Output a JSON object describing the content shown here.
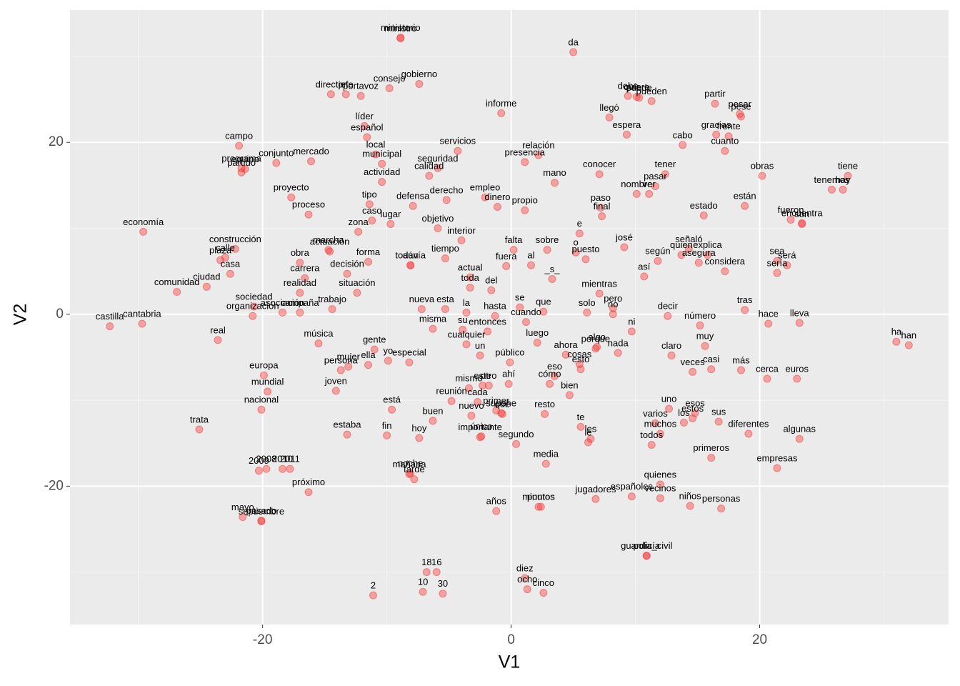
{
  "chart_data": {
    "type": "scatter",
    "x_label": "V1",
    "y_label": "V2",
    "xlim": [
      -35.5,
      35.2
    ],
    "ylim": [
      -36.1,
      35.4
    ],
    "xticks": [
      -20,
      0,
      20
    ],
    "yticks": [
      -20,
      0,
      20
    ],
    "xminor": [
      -30,
      -10,
      10,
      30
    ],
    "yminor": [
      -30,
      -10,
      10,
      30
    ],
    "grid": true,
    "color": "#f8312f",
    "points": [
      {
        "label": "ministerio",
        "x": -8.9,
        "y": 32.2
      },
      {
        "label": "ministro",
        "x": -8.9,
        "y": 32.1
      },
      {
        "label": "da",
        "x": 5.0,
        "y": 30.5
      },
      {
        "label": "gobierno",
        "x": -7.4,
        "y": 26.8
      },
      {
        "label": "consejo",
        "x": -9.8,
        "y": 26.3
      },
      {
        "label": "jefe",
        "x": -13.3,
        "y": 25.6
      },
      {
        "label": "director",
        "x": -14.5,
        "y": 25.6
      },
      {
        "label": "portavoz",
        "x": -12.1,
        "y": 25.4
      },
      {
        "label": "debe",
        "x": 9.4,
        "y": 25.4
      },
      {
        "label": "puede",
        "x": 10.3,
        "y": 25.2
      },
      {
        "label": "pueden",
        "x": 11.3,
        "y": 24.8
      },
      {
        "label": "partir",
        "x": 16.4,
        "y": 24.5
      },
      {
        "label": "pesar",
        "x": 18.4,
        "y": 23.3
      },
      {
        "label": "pese",
        "x": 18.5,
        "y": 23.0
      },
      {
        "label": "informe",
        "x": -0.8,
        "y": 23.4
      },
      {
        "label": "quiere",
        "x": 10.1,
        "y": 25.3
      },
      {
        "label": "llegó",
        "x": 7.9,
        "y": 22.9
      },
      {
        "label": "líder",
        "x": -11.8,
        "y": 21.9
      },
      {
        "label": "español",
        "x": -11.6,
        "y": 20.6
      },
      {
        "label": "campo",
        "x": -21.9,
        "y": 19.6
      },
      {
        "label": "servicios",
        "x": -4.3,
        "y": 19.0
      },
      {
        "label": "espera",
        "x": 9.3,
        "y": 20.9
      },
      {
        "label": "cabo",
        "x": 13.8,
        "y": 19.7
      },
      {
        "label": "gracias",
        "x": 16.5,
        "y": 20.9
      },
      {
        "label": "frente",
        "x": 17.5,
        "y": 20.7
      },
      {
        "label": "relación",
        "x": 2.2,
        "y": 18.5
      },
      {
        "label": "equipo",
        "x": -21.4,
        "y": 16.9
      },
      {
        "label": "mercado",
        "x": -16.1,
        "y": 17.8
      },
      {
        "label": "local",
        "x": -10.9,
        "y": 18.6
      },
      {
        "label": "seguridad",
        "x": -5.9,
        "y": 17.0
      },
      {
        "label": "municipal",
        "x": -10.4,
        "y": 17.5
      },
      {
        "label": "conjunto",
        "x": -18.9,
        "y": 17.6
      },
      {
        "label": "partido",
        "x": -21.7,
        "y": 16.5
      },
      {
        "label": "mano",
        "x": 3.5,
        "y": 15.3
      },
      {
        "label": "conocer",
        "x": 7.1,
        "y": 16.3
      },
      {
        "label": "tener",
        "x": 12.4,
        "y": 16.3
      },
      {
        "label": "obras",
        "x": 20.2,
        "y": 16.1
      },
      {
        "label": "tiene",
        "x": 27.1,
        "y": 16.1
      },
      {
        "label": "tenemos",
        "x": 25.8,
        "y": 14.5
      },
      {
        "label": "hay",
        "x": 26.7,
        "y": 14.5
      },
      {
        "label": "presencia",
        "x": 1.1,
        "y": 17.7
      },
      {
        "label": "calidad",
        "x": -6.6,
        "y": 16.1
      },
      {
        "label": "programa",
        "x": -21.7,
        "y": 17.0
      },
      {
        "label": "cuanto",
        "x": 17.2,
        "y": 19.0
      },
      {
        "label": "paso",
        "x": 7.2,
        "y": 12.4
      },
      {
        "label": "pasar",
        "x": 11.6,
        "y": 14.9
      },
      {
        "label": "nombre",
        "x": 10.1,
        "y": 14.0
      },
      {
        "label": "ver",
        "x": 11.1,
        "y": 14.0
      },
      {
        "label": "están",
        "x": 18.8,
        "y": 12.6
      },
      {
        "label": "fueron",
        "x": 22.5,
        "y": 11.0
      },
      {
        "label": "tipo",
        "x": -11.4,
        "y": 12.8
      },
      {
        "label": "actividad",
        "x": -10.4,
        "y": 15.4
      },
      {
        "label": "derecho",
        "x": -5.2,
        "y": 13.3
      },
      {
        "label": "proyecto",
        "x": -17.7,
        "y": 13.6
      },
      {
        "label": "proceso",
        "x": -16.3,
        "y": 11.6
      },
      {
        "label": "caso",
        "x": -11.2,
        "y": 10.9
      },
      {
        "label": "defensa",
        "x": -7.9,
        "y": 12.6
      },
      {
        "label": "empleo",
        "x": -2.1,
        "y": 13.6
      },
      {
        "label": "dinero",
        "x": -1.1,
        "y": 12.5
      },
      {
        "label": "estado",
        "x": 15.5,
        "y": 11.5
      },
      {
        "label": "encuentra",
        "x": 23.4,
        "y": 10.6
      },
      {
        "label": "final",
        "x": 7.3,
        "y": 11.4
      },
      {
        "label": "propio",
        "x": 1.1,
        "y": 12.1
      },
      {
        "label": "zona",
        "x": -12.3,
        "y": 9.6
      },
      {
        "label": "lugar",
        "x": -9.7,
        "y": 10.5
      },
      {
        "label": "objetivo",
        "x": -5.9,
        "y": 10.0
      },
      {
        "label": "interior",
        "x": -4.0,
        "y": 8.6
      },
      {
        "label": "falta",
        "x": 0.2,
        "y": 7.5
      },
      {
        "label": "sobre",
        "x": 2.9,
        "y": 7.5
      },
      {
        "label": "e",
        "x": 5.5,
        "y": 9.4
      },
      {
        "label": "josé",
        "x": 9.1,
        "y": 7.8
      },
      {
        "label": "señaló",
        "x": 14.3,
        "y": 7.6
      },
      {
        "label": "son",
        "x": 23.4,
        "y": 10.5
      },
      {
        "label": "sea",
        "x": 21.4,
        "y": 6.2
      },
      {
        "label": "será",
        "x": 22.2,
        "y": 5.7
      },
      {
        "label": "sería",
        "x": 21.4,
        "y": 4.8
      },
      {
        "label": "considera",
        "x": 17.2,
        "y": 5.0
      },
      {
        "label": "explica",
        "x": 15.8,
        "y": 6.9
      },
      {
        "label": "economía",
        "x": -29.6,
        "y": 9.6
      },
      {
        "label": "calle",
        "x": -23.0,
        "y": 6.6
      },
      {
        "label": "construcción",
        "x": -22.2,
        "y": 7.6
      },
      {
        "label": "plaza",
        "x": -23.4,
        "y": 6.3
      },
      {
        "label": "marcha",
        "x": -14.7,
        "y": 7.5
      },
      {
        "label": "actuación",
        "x": -14.6,
        "y": 7.3
      },
      {
        "label": "forma",
        "x": -11.5,
        "y": 6.1
      },
      {
        "label": "aún",
        "x": -8.1,
        "y": 5.7
      },
      {
        "label": "tiempo",
        "x": -5.3,
        "y": 6.5
      },
      {
        "label": "todavía",
        "x": -8.1,
        "y": 5.7
      },
      {
        "label": "fuera",
        "x": -0.4,
        "y": 5.6
      },
      {
        "label": "o",
        "x": 5.2,
        "y": 7.2
      },
      {
        "label": "puesto",
        "x": 6.0,
        "y": 6.4
      },
      {
        "label": "quien",
        "x": 13.7,
        "y": 6.9
      },
      {
        "label": "según",
        "x": 11.8,
        "y": 6.2
      },
      {
        "label": "asegura",
        "x": 15.1,
        "y": 6.0
      },
      {
        "label": "actual",
        "x": -3.3,
        "y": 4.3
      },
      {
        "label": "al",
        "x": 1.6,
        "y": 5.7
      },
      {
        "label": "_s_",
        "x": 3.3,
        "y": 4.1
      },
      {
        "label": "así",
        "x": 10.7,
        "y": 4.4
      },
      {
        "label": "obra",
        "x": -17.0,
        "y": 6.0
      },
      {
        "label": "carrera",
        "x": -16.6,
        "y": 4.2
      },
      {
        "label": "decisión",
        "x": -13.2,
        "y": 4.7
      },
      {
        "label": "ciudad",
        "x": -24.5,
        "y": 3.2
      },
      {
        "label": "casa",
        "x": -22.6,
        "y": 4.7
      },
      {
        "label": "realidad",
        "x": -17.0,
        "y": 2.5
      },
      {
        "label": "situación",
        "x": -12.4,
        "y": 2.5
      },
      {
        "label": "toda",
        "x": -3.3,
        "y": 3.1
      },
      {
        "label": "del",
        "x": -1.6,
        "y": 2.8
      },
      {
        "label": "se",
        "x": 0.7,
        "y": 0.8
      },
      {
        "label": "que",
        "x": 2.6,
        "y": 0.3
      },
      {
        "label": "mientras",
        "x": 7.1,
        "y": 2.4
      },
      {
        "label": "pero",
        "x": 8.2,
        "y": 0.7
      },
      {
        "label": "comunidad",
        "x": -26.9,
        "y": 2.6
      },
      {
        "label": "sociedad",
        "x": -20.7,
        "y": 0.9
      },
      {
        "label": "organización",
        "x": -20.8,
        "y": -0.2
      },
      {
        "label": "trabajo",
        "x": -14.4,
        "y": 0.6
      },
      {
        "label": "nueva",
        "x": -7.2,
        "y": 0.6
      },
      {
        "label": "esta",
        "x": -5.3,
        "y": 0.6
      },
      {
        "label": "la",
        "x": -3.6,
        "y": 0.2
      },
      {
        "label": "hasta",
        "x": -1.3,
        "y": -0.2
      },
      {
        "label": "cuando",
        "x": 1.2,
        "y": -0.9
      },
      {
        "label": "solo",
        "x": 6.1,
        "y": 0.2
      },
      {
        "label": "no",
        "x": 8.2,
        "y": 0.0
      },
      {
        "label": "ni",
        "x": 9.7,
        "y": -2.0
      },
      {
        "label": "decir",
        "x": 12.6,
        "y": -0.2
      },
      {
        "label": "tras",
        "x": 18.8,
        "y": 0.5
      },
      {
        "label": "lleva",
        "x": 23.2,
        "y": -1.0
      },
      {
        "label": "número",
        "x": 15.2,
        "y": -1.3
      },
      {
        "label": "hace",
        "x": 20.7,
        "y": -1.1
      },
      {
        "label": "castilla",
        "x": -32.3,
        "y": -1.4
      },
      {
        "label": "cantabria",
        "x": -29.7,
        "y": -1.1
      },
      {
        "label": "campaña",
        "x": -17.0,
        "y": 0.2
      },
      {
        "label": "misma",
        "x": -6.3,
        "y": -1.7
      },
      {
        "label": "su",
        "x": -3.9,
        "y": -1.8
      },
      {
        "label": "entonces",
        "x": -1.9,
        "y": -2.0
      },
      {
        "label": "luego",
        "x": 2.1,
        "y": -3.3
      },
      {
        "label": "porque",
        "x": 6.8,
        "y": -4.0
      },
      {
        "label": "algo",
        "x": 6.9,
        "y": -3.8
      },
      {
        "label": "claro",
        "x": 12.9,
        "y": -4.8
      },
      {
        "label": "muy",
        "x": 15.6,
        "y": -3.7
      },
      {
        "label": "veces",
        "x": 14.6,
        "y": -6.7
      },
      {
        "label": "más",
        "x": 18.5,
        "y": -6.5
      },
      {
        "label": "asociación",
        "x": -18.4,
        "y": 0.2
      },
      {
        "label": "gente",
        "x": -11.0,
        "y": -4.1
      },
      {
        "label": "cualquier",
        "x": -3.6,
        "y": -3.5
      },
      {
        "label": "un",
        "x": -2.5,
        "y": -4.8
      },
      {
        "label": "público",
        "x": -0.1,
        "y": -5.6
      },
      {
        "label": "ahora",
        "x": 4.4,
        "y": -4.7
      },
      {
        "label": "esto",
        "x": 5.6,
        "y": -6.4
      },
      {
        "label": "nada",
        "x": 8.6,
        "y": -4.5
      },
      {
        "label": "casi",
        "x": 16.1,
        "y": -6.4
      },
      {
        "label": "cerca",
        "x": 20.6,
        "y": -7.5
      },
      {
        "label": "euros",
        "x": 23.0,
        "y": -7.5
      },
      {
        "label": "ha",
        "x": 31.0,
        "y": -3.2
      },
      {
        "label": "han",
        "x": 32.0,
        "y": -3.6
      },
      {
        "label": "real",
        "x": -23.6,
        "y": -3.0
      },
      {
        "label": "música",
        "x": -15.5,
        "y": -3.4
      },
      {
        "label": "persona",
        "x": -13.7,
        "y": -6.5
      },
      {
        "label": "europa",
        "x": -19.9,
        "y": -7.1
      },
      {
        "label": "yo",
        "x": -9.9,
        "y": -5.4
      },
      {
        "label": "ella",
        "x": -11.5,
        "y": -5.9
      },
      {
        "label": "mujer",
        "x": -13.1,
        "y": -6.1
      },
      {
        "label": "especial",
        "x": -8.2,
        "y": -5.6
      },
      {
        "label": "este",
        "x": -2.3,
        "y": -8.3
      },
      {
        "label": "otro",
        "x": -1.8,
        "y": -8.3
      },
      {
        "label": "ahí",
        "x": -0.2,
        "y": -8.1
      },
      {
        "label": "eso",
        "x": 3.5,
        "y": -7.2
      },
      {
        "label": "mundial",
        "x": -19.6,
        "y": -9.0
      },
      {
        "label": "joven",
        "x": -14.1,
        "y": -8.9
      },
      {
        "label": "está",
        "x": -9.6,
        "y": -11.1
      },
      {
        "label": "mismo",
        "x": -3.4,
        "y": -8.6
      },
      {
        "label": "cada",
        "x": -2.7,
        "y": -10.2
      },
      {
        "label": "cómo",
        "x": 3.1,
        "y": -8.1
      },
      {
        "label": "bien",
        "x": 4.7,
        "y": -9.4
      },
      {
        "label": "uno",
        "x": 12.7,
        "y": -11.0
      },
      {
        "label": "esos",
        "x": 14.8,
        "y": -11.5
      },
      {
        "label": "estos",
        "x": 14.6,
        "y": -12.1
      },
      {
        "label": "nacional",
        "x": -20.1,
        "y": -11.1
      },
      {
        "label": "buen",
        "x": -6.3,
        "y": -12.4
      },
      {
        "label": "nuevo",
        "x": -3.2,
        "y": -11.8
      },
      {
        "label": "qué",
        "x": -0.7,
        "y": -11.6
      },
      {
        "label": "resto",
        "x": 2.7,
        "y": -11.6
      },
      {
        "label": "cosas",
        "x": 5.5,
        "y": -5.8
      },
      {
        "label": "varios",
        "x": 11.6,
        "y": -12.7
      },
      {
        "label": "los",
        "x": 13.9,
        "y": -12.6
      },
      {
        "label": "sus",
        "x": 16.7,
        "y": -12.5
      },
      {
        "label": "trata",
        "x": -25.1,
        "y": -13.4
      },
      {
        "label": "estaba",
        "x": -13.2,
        "y": -14.0
      },
      {
        "label": "hoy",
        "x": -7.4,
        "y": -14.4
      },
      {
        "label": "único",
        "x": -2.4,
        "y": -14.2
      },
      {
        "label": "primer",
        "x": -1.2,
        "y": -11.2
      },
      {
        "label": "te",
        "x": 5.6,
        "y": -13.1
      },
      {
        "label": "les",
        "x": 6.4,
        "y": -14.5
      },
      {
        "label": "todos",
        "x": 11.3,
        "y": -15.2
      },
      {
        "label": "diferentes",
        "x": 19.1,
        "y": -13.9
      },
      {
        "label": "algunas",
        "x": 23.2,
        "y": -14.5
      },
      {
        "label": "fin",
        "x": -10.0,
        "y": -14.1
      },
      {
        "label": "reunión",
        "x": -4.8,
        "y": -10.1
      },
      {
        "label": "importante",
        "x": -2.5,
        "y": -14.3
      },
      {
        "label": "segundo",
        "x": 0.4,
        "y": -15.1
      },
      {
        "label": "le",
        "x": 6.2,
        "y": -14.9
      },
      {
        "label": "muchos",
        "x": 12.0,
        "y": -13.9
      },
      {
        "label": "noche",
        "x": -8.1,
        "y": -18.5
      },
      {
        "label": "quienes",
        "x": 12.0,
        "y": -19.8
      },
      {
        "label": "primeros",
        "x": 16.1,
        "y": -16.7
      },
      {
        "label": "empresas",
        "x": 21.4,
        "y": -17.9
      },
      {
        "label": "2009",
        "x": -20.3,
        "y": -18.2
      },
      {
        "label": "2010",
        "x": -18.4,
        "y": -18.0
      },
      {
        "label": "2008",
        "x": -19.7,
        "y": -18.0
      },
      {
        "label": "2011",
        "x": -17.8,
        "y": -18.0
      },
      {
        "label": "supone",
        "x": -0.8,
        "y": -11.5
      },
      {
        "label": "media",
        "x": 2.8,
        "y": -17.4
      },
      {
        "label": "mañana",
        "x": -8.2,
        "y": -18.6
      },
      {
        "label": "tarde",
        "x": -7.8,
        "y": -19.2
      },
      {
        "label": "próximo",
        "x": -16.3,
        "y": -20.7
      },
      {
        "label": "jugadores",
        "x": 6.8,
        "y": -21.5
      },
      {
        "label": "vecinos",
        "x": 12.0,
        "y": -21.4
      },
      {
        "label": "mayo",
        "x": -21.6,
        "y": -23.6
      },
      {
        "label": "pasado",
        "x": -20.1,
        "y": -24.0
      },
      {
        "label": "septiembre",
        "x": -20.1,
        "y": -24.1
      },
      {
        "label": "años",
        "x": -1.2,
        "y": -22.9
      },
      {
        "label": "puntos",
        "x": 2.4,
        "y": -22.4
      },
      {
        "label": "minutos",
        "x": 2.2,
        "y": -22.4
      },
      {
        "label": "españoles",
        "x": 9.7,
        "y": -21.2
      },
      {
        "label": "niños",
        "x": 14.4,
        "y": -22.3
      },
      {
        "label": "personas",
        "x": 16.9,
        "y": -22.6
      },
      {
        "label": "guardia_civil",
        "x": 10.9,
        "y": -28.1
      },
      {
        "label": "policía",
        "x": 10.9,
        "y": -28.1
      },
      {
        "label": "18",
        "x": -6.8,
        "y": -30.0
      },
      {
        "label": "16",
        "x": -6.0,
        "y": -30.0
      },
      {
        "label": "diez",
        "x": 1.1,
        "y": -30.7
      },
      {
        "label": "10",
        "x": -7.1,
        "y": -32.3
      },
      {
        "label": "30",
        "x": -5.5,
        "y": -32.5
      },
      {
        "label": "2",
        "x": -11.1,
        "y": -32.7
      },
      {
        "label": "ocho",
        "x": 1.3,
        "y": -32.0
      },
      {
        "label": "cinco",
        "x": 2.6,
        "y": -32.4
      }
    ]
  }
}
